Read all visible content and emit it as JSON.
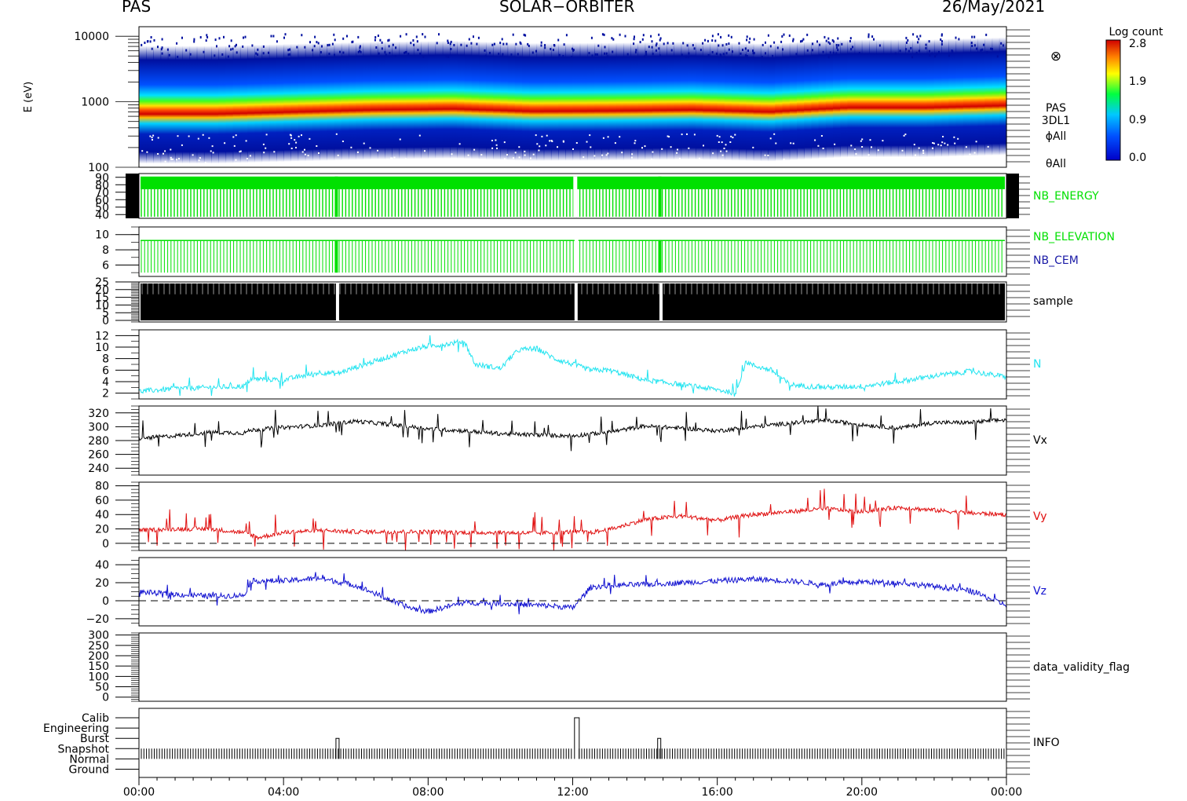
{
  "header": {
    "left": "PAS",
    "center": "SOLAR−ORBITER",
    "right": "26/May/2021"
  },
  "colorbar": {
    "title": "Log count",
    "ticks": [
      "2.8",
      "1.9",
      "0.9",
      "0.0"
    ]
  },
  "energy_axis_label": "E (eV)",
  "time_ticks": [
    "00:00",
    "04:00",
    "08:00",
    "12:00",
    "16:00",
    "20:00",
    "00:00"
  ],
  "panel_labels": {
    "spec": [
      "PAS",
      "3DL1",
      "ϕAll",
      "θAll"
    ],
    "nb_energy": "NB_ENERGY",
    "nb_elevation": "NB_ELEVATION",
    "nb_cem": "NB_CEM",
    "sample": "sample",
    "n": "N",
    "vx": "Vx",
    "vy": "Vy",
    "vz": "Vz",
    "validity": "data_validity_flag",
    "info": "INFO"
  },
  "colors": {
    "nb": "#00e000",
    "cem": "#1a1aa6",
    "n": "#22e4f0",
    "vx": "#000000",
    "vy": "#e01010",
    "vz": "#1010d0"
  },
  "chart_data": [
    {
      "type": "heatmap",
      "ylabel": "E (eV)",
      "yscale": "log",
      "ylim": [
        100,
        14000
      ],
      "yticks": [
        "10000",
        "1000",
        "100"
      ],
      "peak_energy_eV": [
        520,
        520,
        560,
        600,
        620,
        570,
        580,
        600,
        560,
        650,
        650,
        700
      ]
    },
    {
      "type": "line",
      "ylim": [
        35,
        95
      ],
      "yticks": [
        "90",
        "80",
        "70",
        "60",
        "50",
        "40"
      ]
    },
    {
      "type": "line",
      "ylim": [
        4.5,
        11
      ],
      "yticks": [
        "10",
        "8",
        "6"
      ]
    },
    {
      "type": "line",
      "ylim": [
        -1,
        25
      ],
      "yticks": [
        "25",
        "20",
        "15",
        "10",
        "5",
        "0"
      ]
    },
    {
      "type": "line",
      "name": "N",
      "ylim": [
        1,
        13
      ],
      "yticks": [
        "12",
        "10",
        "8",
        "6",
        "4",
        "2"
      ],
      "x_hours": [
        0,
        1,
        2,
        2.9,
        3.1,
        4,
        5,
        5.5,
        6,
        7,
        7.5,
        8,
        8.5,
        9,
        9.3,
        10,
        10.5,
        11,
        11.5,
        12,
        12.5,
        13,
        14,
        15,
        16,
        16.5,
        16.8,
        17,
        17.5,
        18,
        18.5,
        19,
        20,
        21,
        22,
        23,
        24
      ],
      "values": [
        2.3,
        2.8,
        3.0,
        3.2,
        4.5,
        4.3,
        5.6,
        5.4,
        6.5,
        8.5,
        9.5,
        10.2,
        10.5,
        11.0,
        7.0,
        6.3,
        9.5,
        9.8,
        8.0,
        7.0,
        6.0,
        6.0,
        4.3,
        3.5,
        2.6,
        2.0,
        7.5,
        6.8,
        6.0,
        3.5,
        3.2,
        3.0,
        3.2,
        4.0,
        5.0,
        5.8,
        4.8
      ]
    },
    {
      "type": "line",
      "name": "Vx",
      "ylim": [
        230,
        330
      ],
      "yticks": [
        "320",
        "300",
        "280",
        "260",
        "240"
      ],
      "x_hours": [
        0,
        1,
        2,
        2.9,
        3.1,
        4,
        5,
        6,
        7,
        8,
        9,
        10,
        11,
        12,
        13,
        14,
        15,
        16,
        17,
        18,
        19,
        20,
        21,
        22,
        23,
        24
      ],
      "values": [
        283,
        287,
        292,
        291,
        295,
        299,
        302,
        308,
        303,
        297,
        294,
        290,
        288,
        287,
        292,
        301,
        298,
        294,
        300,
        305,
        309,
        303,
        298,
        306,
        306,
        310
      ]
    },
    {
      "type": "line",
      "name": "Vy",
      "ylim": [
        -10,
        85
      ],
      "yticks": [
        "80",
        "60",
        "40",
        "20",
        "0"
      ],
      "x_hours": [
        0,
        1,
        2,
        3,
        3.3,
        4,
        5,
        6,
        7,
        8,
        9,
        10,
        11,
        12,
        12.5,
        13,
        14,
        15,
        16,
        17,
        18,
        19,
        20,
        21,
        22,
        23,
        24
      ],
      "values": [
        18,
        20,
        20,
        14,
        8,
        15,
        18,
        16,
        16,
        16,
        15,
        15,
        14,
        16,
        15,
        19,
        33,
        38,
        32,
        40,
        44,
        48,
        44,
        50,
        46,
        42,
        40
      ]
    },
    {
      "type": "line",
      "name": "Vz",
      "ylim": [
        -28,
        48
      ],
      "yticks": [
        "40",
        "20",
        "0",
        "−20"
      ],
      "x_hours": [
        0,
        1,
        2,
        2.9,
        3.1,
        4,
        5,
        6,
        7,
        7.5,
        8,
        9,
        10,
        11,
        11.5,
        12,
        12.5,
        13,
        14,
        15,
        16,
        17,
        18,
        19,
        20,
        21,
        22,
        23,
        24
      ],
      "values": [
        10,
        7,
        5,
        6,
        22,
        22,
        25,
        17,
        0,
        -8,
        -12,
        -2,
        -3,
        -5,
        -6,
        -8,
        15,
        17,
        18,
        20,
        22,
        24,
        22,
        18,
        21,
        20,
        16,
        11,
        -5
      ]
    },
    {
      "type": "line",
      "ylim": [
        -20,
        310
      ],
      "yticks": [
        "300",
        "250",
        "200",
        "150",
        "100",
        "50",
        "0"
      ]
    },
    {
      "type": "line",
      "yticks": [
        "Calib",
        "Engineering",
        "Burst",
        "Snapshot",
        "Normal",
        "Ground"
      ],
      "mode_levels": [
        "Snapshot",
        "Burst",
        "Calib",
        "Burst"
      ],
      "mode_at_hours": [
        0,
        5.45,
        12.05,
        14.35
      ]
    }
  ]
}
